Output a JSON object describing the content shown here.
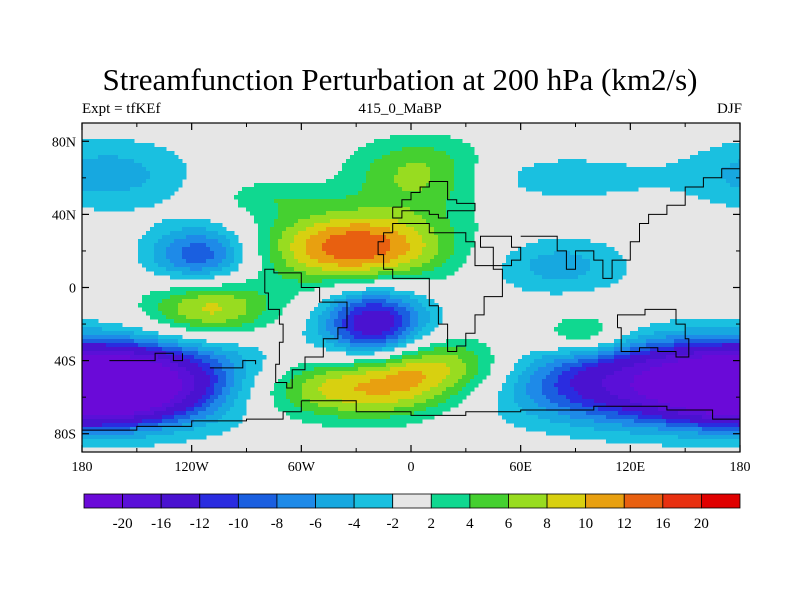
{
  "title": "Streamfunction Perturbation at 200 hPa (km2/s)",
  "subtitle_left": "Expt = tfKEf",
  "subtitle_center": "415_0_MaBP",
  "subtitle_right": "DJF",
  "y_ticks": [
    {
      "label": "80N",
      "lat": 80
    },
    {
      "label": "40N",
      "lat": 40
    },
    {
      "label": "0",
      "lat": 0
    },
    {
      "label": "40S",
      "lat": -40
    },
    {
      "label": "80S",
      "lat": -80
    }
  ],
  "x_ticks": [
    {
      "label": "180",
      "lon": -180
    },
    {
      "label": "120W",
      "lon": -120
    },
    {
      "label": "60W",
      "lon": -60
    },
    {
      "label": "0",
      "lon": 0
    },
    {
      "label": "60E",
      "lon": 60
    },
    {
      "label": "120E",
      "lon": 120
    },
    {
      "label": "180",
      "lon": 180
    }
  ],
  "colorbar": {
    "colors": [
      "#6a0ad8",
      "#5a10d8",
      "#4a12d0",
      "#2a2ce0",
      "#1a5fe0",
      "#1e8ae8",
      "#17a8e0",
      "#1ac0e0",
      "#e6e6e6",
      "#10d890",
      "#45d030",
      "#98dc20",
      "#d8d010",
      "#e8a010",
      "#e86010",
      "#e83010",
      "#e00000"
    ],
    "labels": [
      "-20",
      "-16",
      "-12",
      "-10",
      "-8",
      "-6",
      "-4",
      "-2",
      "2",
      "4",
      "6",
      "8",
      "10",
      "12",
      "16",
      "20"
    ]
  },
  "field_blobs": [
    {
      "lon": 175,
      "lat": -52,
      "rlon": 110,
      "rlat": 22,
      "amp": -24
    },
    {
      "lon": -172,
      "lat": -55,
      "rlon": 40,
      "rlat": 16,
      "amp": -22
    },
    {
      "lon": -20,
      "lat": -20,
      "rlon": 28,
      "rlat": 20,
      "amp": -15
    },
    {
      "lon": -115,
      "lat": 18,
      "rlon": 28,
      "rlat": 16,
      "amp": -10
    },
    {
      "lon": 80,
      "lat": 12,
      "rlon": 40,
      "rlat": 16,
      "amp": -5
    },
    {
      "lon": -30,
      "lat": 22,
      "rlon": 50,
      "rlat": 20,
      "amp": 14
    },
    {
      "lon": -45,
      "lat": -55,
      "rlon": 70,
      "rlat": 18,
      "amp": 13
    },
    {
      "lon": 15,
      "lat": -42,
      "rlon": 45,
      "rlat": 16,
      "amp": 8
    },
    {
      "lon": -110,
      "lat": -12,
      "rlon": 35,
      "rlat": 16,
      "amp": 9
    },
    {
      "lon": 5,
      "lat": 62,
      "rlon": 38,
      "rlat": 20,
      "amp": 7
    },
    {
      "lon": -165,
      "lat": 62,
      "rlon": 45,
      "rlat": 20,
      "amp": -5
    },
    {
      "lon": 95,
      "lat": -26,
      "rlon": 25,
      "rlat": 12,
      "amp": 6
    },
    {
      "lon": 80,
      "lat": 60,
      "rlon": 60,
      "rlat": 13,
      "amp": -3.5
    },
    {
      "lon": -78,
      "lat": 50,
      "rlon": 30,
      "rlat": 10,
      "amp": 3
    }
  ],
  "coastlines": [
    [
      [
        -10,
        44
      ],
      [
        -5,
        44
      ],
      [
        -5,
        48
      ],
      [
        0,
        48
      ],
      [
        0,
        52
      ],
      [
        5,
        52
      ],
      [
        5,
        55
      ],
      [
        10,
        55
      ],
      [
        10,
        58
      ],
      [
        15,
        58
      ],
      [
        20,
        56
      ],
      [
        20,
        48
      ],
      [
        25,
        46
      ],
      [
        35,
        46
      ],
      [
        35,
        42
      ],
      [
        25,
        42
      ],
      [
        20,
        38
      ],
      [
        15,
        40
      ],
      [
        10,
        42
      ],
      [
        0,
        42
      ],
      [
        -5,
        38
      ],
      [
        -10,
        38
      ],
      [
        -10,
        44
      ]
    ],
    [
      [
        -10,
        30
      ],
      [
        -15,
        25
      ],
      [
        -18,
        18
      ],
      [
        -15,
        10
      ],
      [
        -10,
        5
      ],
      [
        -5,
        5
      ],
      [
        5,
        5
      ],
      [
        10,
        0
      ],
      [
        10,
        -10
      ],
      [
        15,
        -20
      ],
      [
        20,
        -35
      ],
      [
        25,
        -32
      ],
      [
        30,
        -25
      ],
      [
        35,
        -15
      ],
      [
        40,
        -5
      ],
      [
        50,
        10
      ],
      [
        45,
        12
      ],
      [
        35,
        25
      ],
      [
        30,
        30
      ],
      [
        10,
        35
      ],
      [
        0,
        35
      ],
      [
        -10,
        30
      ]
    ],
    [
      [
        45,
        12
      ],
      [
        55,
        15
      ],
      [
        60,
        22
      ],
      [
        55,
        28
      ],
      [
        45,
        28
      ],
      [
        38,
        22
      ],
      [
        45,
        12
      ]
    ],
    [
      [
        60,
        28
      ],
      [
        70,
        28
      ],
      [
        80,
        20
      ],
      [
        85,
        10
      ],
      [
        90,
        20
      ],
      [
        100,
        15
      ],
      [
        105,
        5
      ],
      [
        110,
        15
      ],
      [
        120,
        25
      ],
      [
        125,
        35
      ],
      [
        130,
        40
      ],
      [
        140,
        45
      ],
      [
        150,
        55
      ],
      [
        160,
        60
      ],
      [
        170,
        65
      ],
      [
        180,
        68
      ]
    ],
    [
      [
        113,
        -22
      ],
      [
        115,
        -35
      ],
      [
        125,
        -33
      ],
      [
        135,
        -35
      ],
      [
        145,
        -38
      ],
      [
        152,
        -28
      ],
      [
        150,
        -20
      ],
      [
        145,
        -12
      ],
      [
        135,
        -12
      ],
      [
        128,
        -15
      ],
      [
        113,
        -22
      ]
    ],
    [
      [
        -80,
        -3
      ],
      [
        -78,
        -12
      ],
      [
        -72,
        -20
      ],
      [
        -70,
        -30
      ],
      [
        -72,
        -42
      ],
      [
        -74,
        -52
      ],
      [
        -68,
        -55
      ],
      [
        -65,
        -45
      ],
      [
        -58,
        -38
      ],
      [
        -48,
        -28
      ],
      [
        -40,
        -22
      ],
      [
        -35,
        -8
      ],
      [
        -50,
        0
      ],
      [
        -60,
        8
      ],
      [
        -75,
        10
      ],
      [
        -80,
        -3
      ]
    ],
    [
      [
        -60,
        -62
      ],
      [
        -30,
        -68
      ],
      [
        0,
        -70
      ],
      [
        30,
        -68
      ],
      [
        60,
        -67
      ],
      [
        100,
        -65
      ],
      [
        140,
        -67
      ],
      [
        165,
        -72
      ],
      [
        180,
        -78
      ]
    ],
    [
      [
        -180,
        -78
      ],
      [
        -150,
        -76
      ],
      [
        -120,
        -73
      ],
      [
        -90,
        -72
      ],
      [
        -70,
        -68
      ],
      [
        -60,
        -62
      ]
    ],
    [
      [
        -165,
        -40
      ],
      [
        -150,
        -40
      ],
      [
        -140,
        -36
      ],
      [
        -130,
        -40
      ],
      [
        -125,
        -36
      ]
    ],
    [
      [
        -110,
        -44
      ],
      [
        -95,
        -44
      ],
      [
        -92,
        -40
      ],
      [
        -85,
        -42
      ]
    ]
  ]
}
